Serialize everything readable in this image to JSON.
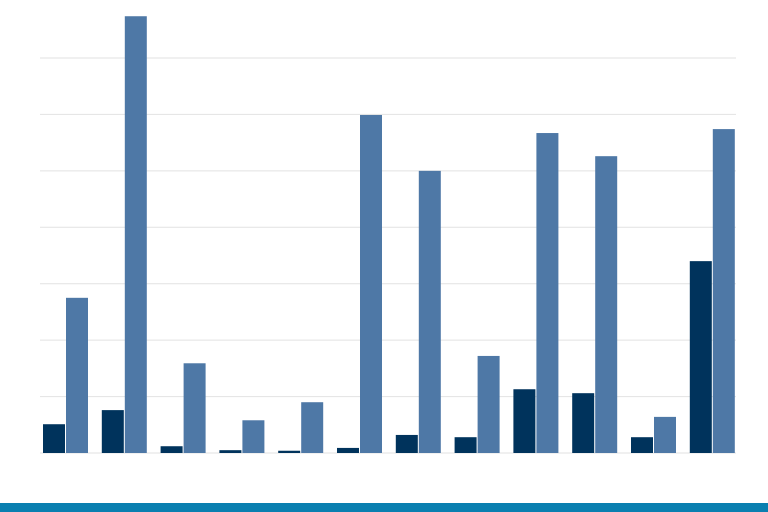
{
  "chart_data": {
    "type": "bar",
    "series": [
      {
        "color": "#00335c",
        "values": [
          0.51,
          0.76,
          0.12,
          0.05,
          0.04,
          0.09,
          0.32,
          0.28,
          1.13,
          1.06,
          0.28,
          3.4
        ]
      },
      {
        "color": "#4e78a6",
        "values": [
          2.75,
          7.74,
          1.59,
          0.58,
          0.9,
          5.99,
          5.0,
          1.72,
          5.67,
          5.26,
          0.64,
          5.74
        ]
      }
    ],
    "ylim": [
      0,
      8
    ],
    "yticks": [
      0,
      1,
      2,
      3,
      4,
      5,
      6,
      7
    ],
    "grid": true
  }
}
